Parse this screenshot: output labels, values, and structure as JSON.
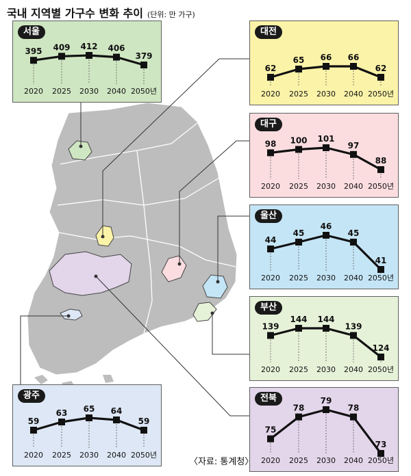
{
  "title": "국내 지역별 가구수 변화 추이",
  "unit": "(단위: 만 가구)",
  "source": "〈자료: 통계청〉",
  "years": [
    "2020",
    "2025",
    "2030",
    "2040",
    "2050년"
  ],
  "colors": {
    "seoul": "#cfe6c2",
    "daejeon": "#fbf3a8",
    "daegu": "#fbdde0",
    "ulsan": "#c4e5f6",
    "busan": "#e6f2d8",
    "gwangju": "#dde7f5",
    "jeonbuk": "#e3d5ea",
    "land": "#bdbdbd",
    "line": "#111111"
  },
  "chart_data": [
    {
      "type": "line",
      "region": "서울",
      "categories": [
        "2020",
        "2025",
        "2030",
        "2040",
        "2050년"
      ],
      "values": [
        395,
        409,
        412,
        406,
        379
      ]
    },
    {
      "type": "line",
      "region": "대전",
      "categories": [
        "2020",
        "2025",
        "2030",
        "2040",
        "2050년"
      ],
      "values": [
        62,
        65,
        66,
        66,
        62
      ]
    },
    {
      "type": "line",
      "region": "대구",
      "categories": [
        "2020",
        "2025",
        "2030",
        "2040",
        "2050년"
      ],
      "values": [
        98,
        100,
        101,
        97,
        88
      ]
    },
    {
      "type": "line",
      "region": "울산",
      "categories": [
        "2020",
        "2025",
        "2030",
        "2040",
        "2050년"
      ],
      "values": [
        44,
        45,
        46,
        45,
        41
      ]
    },
    {
      "type": "line",
      "region": "부산",
      "categories": [
        "2020",
        "2025",
        "2030",
        "2040",
        "2050년"
      ],
      "values": [
        139,
        144,
        144,
        139,
        124
      ]
    },
    {
      "type": "line",
      "region": "광주",
      "categories": [
        "2020",
        "2025",
        "2030",
        "2040",
        "2050년"
      ],
      "values": [
        59,
        63,
        65,
        64,
        59
      ]
    },
    {
      "type": "line",
      "region": "전북",
      "categories": [
        "2020",
        "2025",
        "2030",
        "2040",
        "2050년"
      ],
      "values": [
        75,
        78,
        79,
        78,
        73
      ]
    }
  ]
}
